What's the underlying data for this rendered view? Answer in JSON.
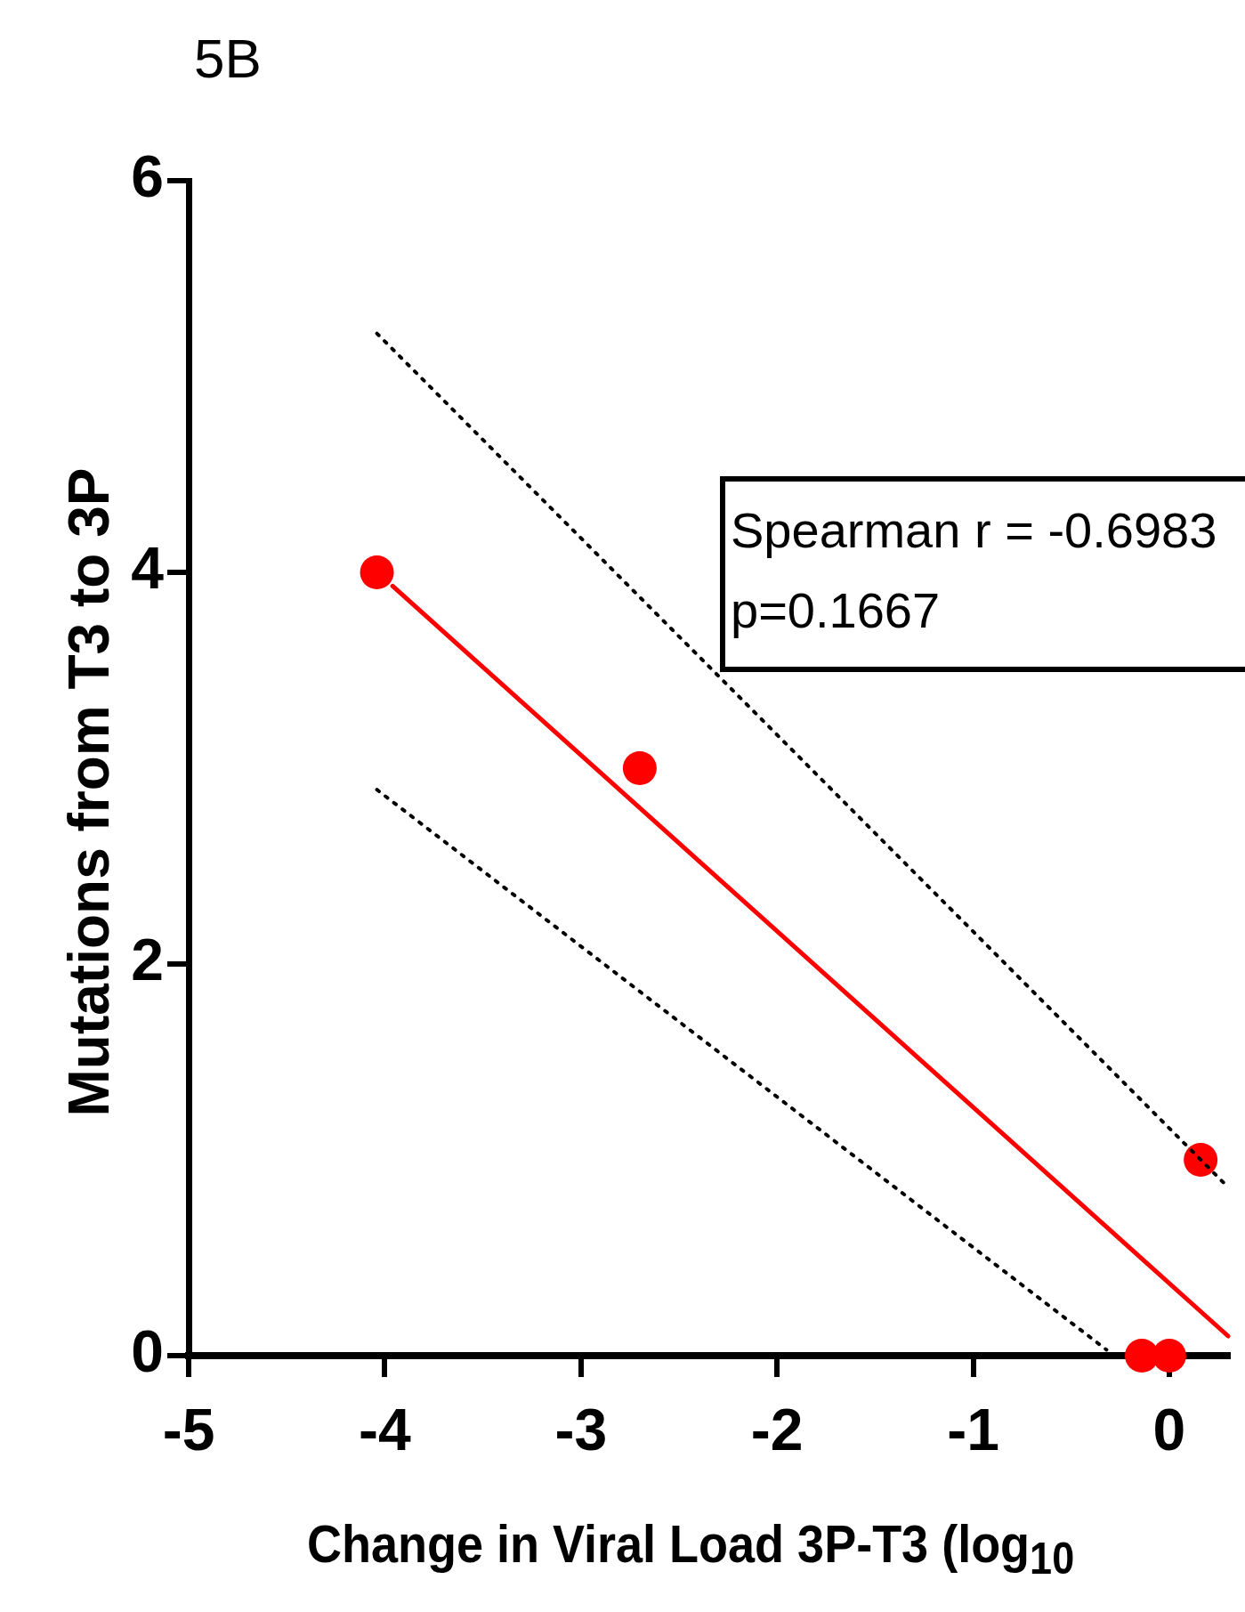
{
  "chart_data": {
    "type": "scatter",
    "title": "5B",
    "xlabel": "Change in Viral Load 3P-T3 (log$_{10}$",
    "ylabel": "Mutations from T3 to 3P",
    "xlim": [
      -5,
      0.3
    ],
    "xticks": [
      -5,
      -4,
      -3,
      -2,
      -1,
      0
    ],
    "ylim": [
      0,
      6
    ],
    "yticks": [
      0,
      2,
      4,
      6
    ],
    "grid": false,
    "legend": false,
    "annotations": [
      "Spearman r = -0.6983",
      "p=0.1667"
    ],
    "series": [
      {
        "type": "line",
        "color": "#ff0000",
        "marker": "none",
        "line_style": "solid",
        "x": [
          -3.96,
          0.3
        ],
        "values": [
          3.93,
          0.1
        ]
      },
      {
        "type": "line",
        "color": "#000000",
        "marker": "none",
        "line_style": "dotted",
        "x": [
          -4.04,
          0.3
        ],
        "values": [
          5.22,
          0.86
        ]
      },
      {
        "type": "line",
        "color": "#000000",
        "marker": "none",
        "line_style": "dotted",
        "x": [
          -4.04,
          -0.32
        ],
        "values": [
          2.89,
          0.03
        ]
      },
      {
        "color": "#ff0000",
        "marker": "circle",
        "x": [
          -4.04,
          -2.7,
          0.16,
          -0.14,
          0.0
        ],
        "values": [
          4.0,
          3.0,
          1.0,
          0,
          0
        ]
      }
    ]
  }
}
